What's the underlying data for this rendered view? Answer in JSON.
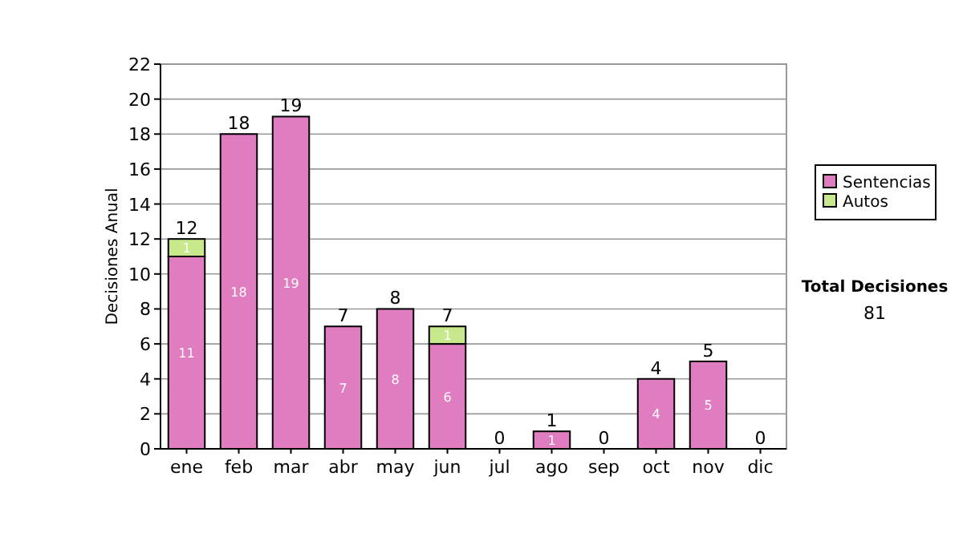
{
  "chart_data": {
    "type": "bar",
    "stacked": true,
    "ylabel": "Decisiones Anual",
    "categories": [
      "ene",
      "feb",
      "mar",
      "abr",
      "may",
      "jun",
      "jul",
      "ago",
      "sep",
      "oct",
      "nov",
      "dic"
    ],
    "series": [
      {
        "name": "Sentencias",
        "color": "#e07cc0",
        "values": [
          11,
          18,
          19,
          7,
          8,
          6,
          0,
          1,
          0,
          4,
          5,
          0
        ],
        "value_labels": [
          "11",
          "18",
          "19",
          "7",
          "8",
          "6",
          null,
          "1",
          null,
          "4",
          "5",
          null
        ]
      },
      {
        "name": "Autos",
        "color": "#c8e88c",
        "values": [
          1,
          0,
          0,
          0,
          0,
          1,
          0,
          0,
          0,
          0,
          0,
          0
        ],
        "value_labels": [
          "1",
          null,
          null,
          null,
          null,
          "1",
          null,
          null,
          null,
          null,
          null,
          null
        ]
      }
    ],
    "totals": [
      "12",
      "18",
      "19",
      "7",
      "8",
      "7",
      "0",
      "1",
      "0",
      "4",
      "5",
      "0"
    ],
    "ylim": [
      0,
      22
    ],
    "yticks": [
      0,
      2,
      4,
      6,
      8,
      10,
      12,
      14,
      16,
      18,
      20,
      22
    ],
    "grid": "y",
    "legend": "right",
    "annotations": [
      "Total Decisiones",
      "81"
    ]
  }
}
